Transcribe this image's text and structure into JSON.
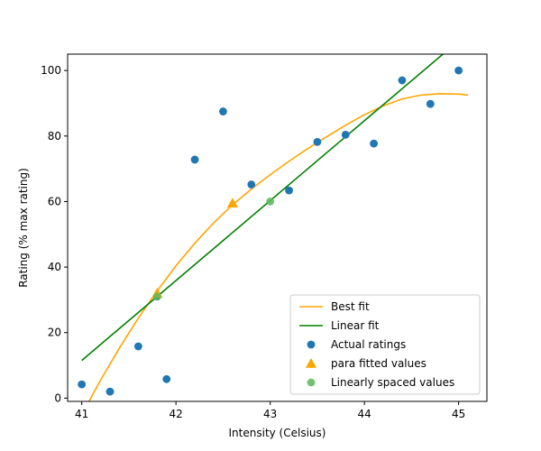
{
  "chart_data": {
    "type": "scatter",
    "title": "",
    "xlabel": "Intensity (Celsius)",
    "ylabel": "Rating (% max rating)",
    "xlim": [
      40.85,
      45.3
    ],
    "ylim": [
      -1,
      105
    ],
    "xticks": [
      41,
      42,
      43,
      44,
      45
    ],
    "yticks": [
      0,
      20,
      40,
      60,
      80,
      100
    ],
    "grid": false,
    "legend_position": "bottom-right",
    "colors": {
      "best_fit": "#ffa500",
      "linear_fit": "#008000",
      "actual": "#1f77b4",
      "para": "#ffa500",
      "linear_spaced": "#5cb85c"
    },
    "series": [
      {
        "name": "Best fit",
        "kind": "line",
        "x": [
          41.0,
          41.2,
          41.4,
          41.6,
          41.8,
          42.0,
          42.2,
          42.4,
          42.6,
          42.8,
          43.0,
          43.2,
          43.4,
          43.6,
          43.8,
          44.0,
          44.2,
          44.4,
          44.6,
          44.8,
          45.0,
          45.1
        ],
        "y": [
          -5.0,
          5.5,
          15.3,
          24.4,
          32.7,
          40.4,
          47.3,
          53.5,
          59.0,
          63.8,
          68.2,
          72.3,
          76.2,
          79.8,
          83.3,
          86.5,
          89.2,
          91.3,
          92.5,
          92.9,
          92.8,
          92.5
        ]
      },
      {
        "name": "Linear fit",
        "kind": "line",
        "x": [
          41.0,
          45.1
        ],
        "y": [
          11.5,
          111.5
        ]
      },
      {
        "name": "Actual ratings",
        "kind": "scatter",
        "x": [
          41.0,
          41.3,
          41.6,
          41.8,
          41.9,
          42.2,
          42.5,
          42.8,
          43.2,
          43.5,
          43.8,
          44.1,
          44.4,
          44.7,
          45.0
        ],
        "y": [
          4.2,
          2.0,
          15.8,
          31.0,
          5.8,
          72.8,
          87.5,
          65.2,
          63.4,
          78.2,
          80.4,
          77.7,
          97.0,
          89.8,
          100.0
        ]
      },
      {
        "name": "para fitted values",
        "kind": "triangle",
        "x": [
          41.8,
          42.6
        ],
        "y": [
          32.0,
          59.5
        ]
      },
      {
        "name": "Linearly spaced values",
        "kind": "scatter",
        "x": [
          41.8,
          43.0
        ],
        "y": [
          31.0,
          60.0
        ]
      }
    ]
  }
}
